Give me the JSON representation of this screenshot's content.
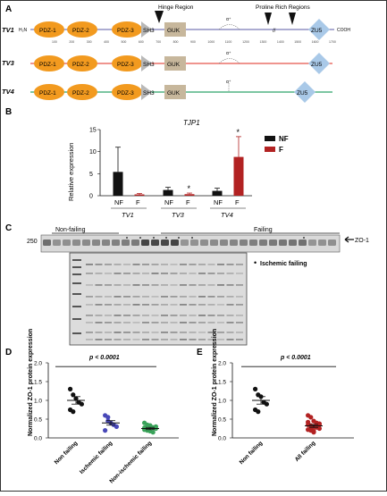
{
  "panels": {
    "A": "A",
    "B": "B",
    "C": "C",
    "D": "D",
    "E": "E"
  },
  "panel_a": {
    "variants": [
      "TV1",
      "TV3",
      "TV4"
    ],
    "domains": {
      "pdz1": "PDZ-1",
      "pdz2": "PDZ-2",
      "pdz3": "PDZ-3",
      "sh3": "SH3",
      "guk": "GUK",
      "zu5": "ZU5"
    },
    "termini": {
      "n": "H₂N",
      "c": "COOH"
    },
    "regions": {
      "hinge": "Hinge Region",
      "proline": "Proline Rich Regions"
    },
    "alpha_mark": "α⁺",
    "ticks": [
      "100",
      "200",
      "300",
      "400",
      "500",
      "600",
      "700",
      "800",
      "900",
      "1000",
      "1100",
      "1200",
      "1300",
      "1400",
      "1500",
      "1600",
      "1700"
    ],
    "colors": {
      "tv1_line": "#7a7ab8",
      "tv3_line": "#e5534b",
      "tv4_line": "#2ea36a",
      "pdz": "#f29a1f",
      "guk": "#c7b79c",
      "zu5": "#a9c9e8",
      "sh3": "#b8b8b8"
    }
  },
  "chart_data": {
    "type": "bar",
    "title": "TJP1",
    "ylabel": "Relative expression",
    "ylim": [
      0,
      15
    ],
    "yticks": [
      "0",
      "5",
      "10",
      "15"
    ],
    "groups": [
      "TV1",
      "TV3",
      "TV4"
    ],
    "bar_labels": [
      "NF",
      "F",
      "NF",
      "F",
      "NF",
      "F"
    ],
    "series": [
      {
        "name": "NF",
        "color": "#111111",
        "values": [
          5.4,
          1.3,
          1.1
        ],
        "errors": [
          5.6,
          0.6,
          0.6
        ]
      },
      {
        "name": "F",
        "color": "#b22222",
        "values": [
          0.3,
          0.35,
          8.8
        ],
        "errors": [
          0.2,
          0.25,
          4.6
        ]
      }
    ],
    "significance": [
      "",
      "*",
      "*"
    ],
    "legend": [
      "NF",
      "F"
    ]
  },
  "panel_c": {
    "group_labels": {
      "nonfailing": "Non-failing",
      "failing": "Failing"
    },
    "marker": "250",
    "band_label": "ZO-1",
    "legend_dot": "•",
    "legend_text": "Ischemic failing"
  },
  "panel_d": {
    "ylabel": "Normalized ZO-1 protein expression",
    "yticks": [
      "0.0",
      "0.5",
      "1.0",
      "1.5",
      "2.0"
    ],
    "ylim": [
      0,
      2.0
    ],
    "categories": [
      "Non failing",
      "Ischemic failing",
      "Non-ischemic failing"
    ],
    "pvalue": "p < 0.0001",
    "colors": [
      "#111111",
      "#4848b8",
      "#3aa35a"
    ],
    "groups": [
      {
        "mean": 1.0,
        "sem": 0.1,
        "points": [
          1.3,
          1.15,
          1.05,
          0.95,
          0.9,
          0.75,
          0.7
        ]
      },
      {
        "mean": 0.4,
        "sem": 0.06,
        "points": [
          0.6,
          0.45,
          0.4,
          0.35,
          0.3,
          0.2,
          0.55
        ]
      },
      {
        "mean": 0.25,
        "sem": 0.03,
        "points": [
          0.4,
          0.35,
          0.3,
          0.28,
          0.25,
          0.22,
          0.2,
          0.18,
          0.15,
          0.3,
          0.27,
          0.23,
          0.33
        ]
      }
    ]
  },
  "panel_e": {
    "ylabel": "Normalized ZO-1 protein expression",
    "yticks": [
      "0.0",
      "0.5",
      "1.0",
      "1.5",
      "2.0"
    ],
    "ylim": [
      0,
      2.0
    ],
    "categories": [
      "Non failing",
      "All failing"
    ],
    "pvalue": "p < 0.0001",
    "colors": [
      "#111111",
      "#b22222"
    ],
    "groups": [
      {
        "mean": 1.0,
        "sem": 0.1,
        "points": [
          1.3,
          1.15,
          1.1,
          0.95,
          0.9,
          0.75,
          0.7
        ]
      },
      {
        "mean": 0.32,
        "sem": 0.04,
        "points": [
          0.6,
          0.55,
          0.45,
          0.4,
          0.38,
          0.35,
          0.33,
          0.3,
          0.28,
          0.25,
          0.22,
          0.2,
          0.18,
          0.3,
          0.35,
          0.42,
          0.26,
          0.15,
          0.38
        ]
      }
    ]
  }
}
